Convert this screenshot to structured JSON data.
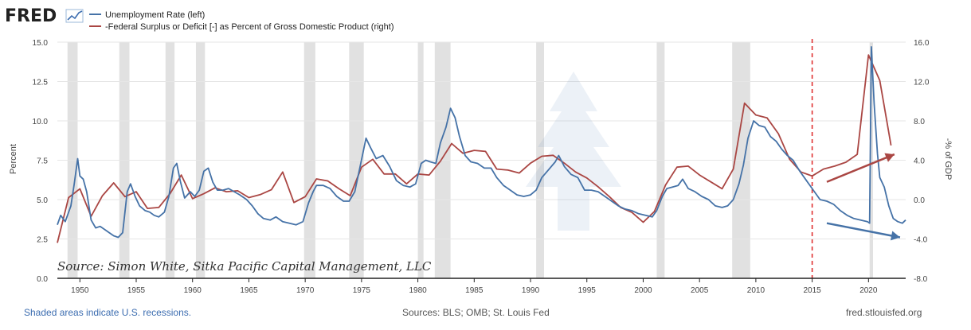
{
  "header": {
    "logo": "FRED"
  },
  "footer": {
    "left": "Shaded areas indicate U.S. recessions.",
    "middle": "Sources: BLS; OMB; St. Louis Fed",
    "right": "fred.stlouisfed.org"
  },
  "annotation": {
    "credit": "Source: Simon White, Sitka Pacific Capital Management, LLC",
    "reference_year": 2015
  },
  "colors": {
    "unemployment": "#4572a7",
    "deficit": "#aa4643",
    "recession": "#e1e1e1",
    "reference_line": "#e03030"
  },
  "chart_data": {
    "type": "line",
    "xlim": [
      1948,
      2023.3
    ],
    "x_ticks": [
      "1950",
      "1955",
      "1960",
      "1965",
      "1970",
      "1975",
      "1980",
      "1985",
      "1990",
      "1995",
      "2000",
      "2005",
      "2010",
      "2015",
      "2020"
    ],
    "left_axis": {
      "label": "Percent",
      "ylim": [
        0,
        15
      ],
      "ticks": [
        "0.0",
        "2.5",
        "5.0",
        "7.5",
        "10.0",
        "12.5",
        "15.0"
      ]
    },
    "right_axis": {
      "label": "-% of GDP",
      "ylim": [
        -8,
        16
      ],
      "ticks": [
        "-8.0",
        "-4.0",
        "0.0",
        "4.0",
        "8.0",
        "12.0",
        "16.0"
      ]
    },
    "recessions": [
      [
        1948.9,
        1949.8
      ],
      [
        1953.5,
        1954.4
      ],
      [
        1957.6,
        1958.4
      ],
      [
        1960.3,
        1961.1
      ],
      [
        1969.9,
        1970.9
      ],
      [
        1973.9,
        1975.2
      ],
      [
        1980.0,
        1980.5
      ],
      [
        1981.5,
        1982.9
      ],
      [
        1990.5,
        1991.2
      ],
      [
        2001.2,
        2001.9
      ],
      [
        2007.9,
        2009.5
      ],
      [
        2020.1,
        2020.4
      ]
    ],
    "series": [
      {
        "name": "Unemployment Rate (left)",
        "axis": "left",
        "points": [
          [
            1948.0,
            3.4
          ],
          [
            1948.3,
            4.0
          ],
          [
            1948.7,
            3.6
          ],
          [
            1949.2,
            4.6
          ],
          [
            1949.5,
            6.0
          ],
          [
            1949.8,
            7.6
          ],
          [
            1950.0,
            6.5
          ],
          [
            1950.3,
            6.3
          ],
          [
            1950.6,
            5.5
          ],
          [
            1951.0,
            3.7
          ],
          [
            1951.4,
            3.2
          ],
          [
            1951.8,
            3.3
          ],
          [
            1952.2,
            3.1
          ],
          [
            1952.6,
            2.9
          ],
          [
            1953.0,
            2.7
          ],
          [
            1953.4,
            2.6
          ],
          [
            1953.8,
            2.9
          ],
          [
            1954.2,
            5.5
          ],
          [
            1954.5,
            6.0
          ],
          [
            1954.9,
            5.2
          ],
          [
            1955.3,
            4.6
          ],
          [
            1955.8,
            4.3
          ],
          [
            1956.2,
            4.2
          ],
          [
            1956.6,
            4.0
          ],
          [
            1957.0,
            3.9
          ],
          [
            1957.5,
            4.2
          ],
          [
            1957.9,
            5.2
          ],
          [
            1958.3,
            7.0
          ],
          [
            1958.6,
            7.3
          ],
          [
            1958.9,
            6.2
          ],
          [
            1959.3,
            5.1
          ],
          [
            1959.8,
            5.5
          ],
          [
            1960.2,
            5.2
          ],
          [
            1960.6,
            5.6
          ],
          [
            1961.0,
            6.8
          ],
          [
            1961.4,
            7.0
          ],
          [
            1961.8,
            6.1
          ],
          [
            1962.2,
            5.6
          ],
          [
            1962.7,
            5.6
          ],
          [
            1963.2,
            5.7
          ],
          [
            1963.7,
            5.5
          ],
          [
            1964.2,
            5.3
          ],
          [
            1964.8,
            5.0
          ],
          [
            1965.3,
            4.6
          ],
          [
            1965.8,
            4.1
          ],
          [
            1966.3,
            3.8
          ],
          [
            1966.9,
            3.7
          ],
          [
            1967.4,
            3.9
          ],
          [
            1968.0,
            3.6
          ],
          [
            1968.6,
            3.5
          ],
          [
            1969.2,
            3.4
          ],
          [
            1969.8,
            3.6
          ],
          [
            1970.3,
            4.8
          ],
          [
            1970.7,
            5.5
          ],
          [
            1971.0,
            5.9
          ],
          [
            1971.6,
            5.9
          ],
          [
            1972.2,
            5.7
          ],
          [
            1972.8,
            5.2
          ],
          [
            1973.4,
            4.9
          ],
          [
            1973.9,
            4.9
          ],
          [
            1974.4,
            5.5
          ],
          [
            1974.9,
            7.2
          ],
          [
            1975.4,
            8.9
          ],
          [
            1975.8,
            8.3
          ],
          [
            1976.3,
            7.6
          ],
          [
            1976.9,
            7.8
          ],
          [
            1977.5,
            7.1
          ],
          [
            1978.1,
            6.2
          ],
          [
            1978.7,
            5.9
          ],
          [
            1979.3,
            5.8
          ],
          [
            1979.8,
            6.0
          ],
          [
            1980.3,
            7.3
          ],
          [
            1980.7,
            7.5
          ],
          [
            1981.1,
            7.4
          ],
          [
            1981.6,
            7.3
          ],
          [
            1982.0,
            8.6
          ],
          [
            1982.5,
            9.6
          ],
          [
            1982.9,
            10.8
          ],
          [
            1983.3,
            10.2
          ],
          [
            1983.7,
            9.0
          ],
          [
            1984.2,
            7.8
          ],
          [
            1984.7,
            7.4
          ],
          [
            1985.3,
            7.3
          ],
          [
            1985.9,
            7.0
          ],
          [
            1986.5,
            7.0
          ],
          [
            1987.0,
            6.4
          ],
          [
            1987.6,
            5.9
          ],
          [
            1988.2,
            5.6
          ],
          [
            1988.8,
            5.3
          ],
          [
            1989.4,
            5.2
          ],
          [
            1990.0,
            5.3
          ],
          [
            1990.5,
            5.6
          ],
          [
            1991.0,
            6.4
          ],
          [
            1991.6,
            6.9
          ],
          [
            1992.2,
            7.4
          ],
          [
            1992.5,
            7.8
          ],
          [
            1993.0,
            7.1
          ],
          [
            1993.6,
            6.6
          ],
          [
            1994.2,
            6.4
          ],
          [
            1994.8,
            5.6
          ],
          [
            1995.4,
            5.6
          ],
          [
            1996.0,
            5.5
          ],
          [
            1996.6,
            5.2
          ],
          [
            1997.2,
            4.9
          ],
          [
            1997.8,
            4.6
          ],
          [
            1998.4,
            4.4
          ],
          [
            1999.0,
            4.3
          ],
          [
            1999.6,
            4.1
          ],
          [
            2000.2,
            4.0
          ],
          [
            2000.8,
            3.9
          ],
          [
            2001.2,
            4.3
          ],
          [
            2001.7,
            5.2
          ],
          [
            2002.1,
            5.7
          ],
          [
            2002.6,
            5.8
          ],
          [
            2003.1,
            5.9
          ],
          [
            2003.5,
            6.3
          ],
          [
            2004.0,
            5.7
          ],
          [
            2004.6,
            5.5
          ],
          [
            2005.2,
            5.2
          ],
          [
            2005.8,
            5.0
          ],
          [
            2006.4,
            4.6
          ],
          [
            2007.0,
            4.5
          ],
          [
            2007.5,
            4.6
          ],
          [
            2008.0,
            5.0
          ],
          [
            2008.5,
            6.0
          ],
          [
            2008.9,
            7.2
          ],
          [
            2009.3,
            8.9
          ],
          [
            2009.8,
            10.0
          ],
          [
            2010.3,
            9.7
          ],
          [
            2010.8,
            9.6
          ],
          [
            2011.3,
            9.0
          ],
          [
            2011.8,
            8.7
          ],
          [
            2012.3,
            8.2
          ],
          [
            2012.8,
            7.8
          ],
          [
            2013.3,
            7.5
          ],
          [
            2013.9,
            6.8
          ],
          [
            2014.5,
            6.2
          ],
          [
            2015.1,
            5.6
          ],
          [
            2015.7,
            5.0
          ],
          [
            2016.3,
            4.9
          ],
          [
            2016.9,
            4.7
          ],
          [
            2017.5,
            4.3
          ],
          [
            2018.1,
            4.0
          ],
          [
            2018.7,
            3.8
          ],
          [
            2019.3,
            3.7
          ],
          [
            2019.9,
            3.6
          ],
          [
            2020.1,
            3.5
          ],
          [
            2020.25,
            14.7
          ],
          [
            2020.5,
            11.1
          ],
          [
            2020.8,
            7.9
          ],
          [
            2021.0,
            6.4
          ],
          [
            2021.4,
            5.8
          ],
          [
            2021.8,
            4.6
          ],
          [
            2022.2,
            3.8
          ],
          [
            2022.6,
            3.6
          ],
          [
            2023.0,
            3.5
          ],
          [
            2023.3,
            3.7
          ]
        ]
      },
      {
        "name": "-Federal Surplus or Deficit [-] as Percent of Gross Domestic Product (right)",
        "axis": "right",
        "points": [
          [
            1948.0,
            -4.4
          ],
          [
            1949.0,
            0.2
          ],
          [
            1950.0,
            1.1
          ],
          [
            1951.0,
            -1.7
          ],
          [
            1952.0,
            0.4
          ],
          [
            1953.0,
            1.7
          ],
          [
            1954.0,
            0.3
          ],
          [
            1955.0,
            0.8
          ],
          [
            1956.0,
            -0.9
          ],
          [
            1957.0,
            -0.8
          ],
          [
            1958.0,
            0.6
          ],
          [
            1959.0,
            2.5
          ],
          [
            1960.0,
            0.1
          ],
          [
            1961.0,
            0.6
          ],
          [
            1962.0,
            1.2
          ],
          [
            1963.0,
            0.8
          ],
          [
            1964.0,
            0.9
          ],
          [
            1965.0,
            0.2
          ],
          [
            1966.0,
            0.5
          ],
          [
            1967.0,
            1.0
          ],
          [
            1968.0,
            2.8
          ],
          [
            1969.0,
            -0.3
          ],
          [
            1970.0,
            0.3
          ],
          [
            1971.0,
            2.1
          ],
          [
            1972.0,
            1.9
          ],
          [
            1973.0,
            1.1
          ],
          [
            1974.0,
            0.4
          ],
          [
            1975.0,
            3.3
          ],
          [
            1976.0,
            4.1
          ],
          [
            1977.0,
            2.6
          ],
          [
            1978.0,
            2.6
          ],
          [
            1979.0,
            1.6
          ],
          [
            1980.0,
            2.6
          ],
          [
            1981.0,
            2.5
          ],
          [
            1982.0,
            3.9
          ],
          [
            1983.0,
            5.7
          ],
          [
            1984.0,
            4.7
          ],
          [
            1985.0,
            5.0
          ],
          [
            1986.0,
            4.9
          ],
          [
            1987.0,
            3.1
          ],
          [
            1988.0,
            3.0
          ],
          [
            1989.0,
            2.7
          ],
          [
            1990.0,
            3.7
          ],
          [
            1991.0,
            4.4
          ],
          [
            1992.0,
            4.5
          ],
          [
            1993.0,
            3.7
          ],
          [
            1994.0,
            2.8
          ],
          [
            1995.0,
            2.2
          ],
          [
            1996.0,
            1.3
          ],
          [
            1997.0,
            0.3
          ],
          [
            1998.0,
            -0.8
          ],
          [
            1999.0,
            -1.3
          ],
          [
            2000.0,
            -2.3
          ],
          [
            2001.0,
            -1.2
          ],
          [
            2002.0,
            1.5
          ],
          [
            2003.0,
            3.3
          ],
          [
            2004.0,
            3.4
          ],
          [
            2005.0,
            2.5
          ],
          [
            2006.0,
            1.8
          ],
          [
            2007.0,
            1.1
          ],
          [
            2008.0,
            3.1
          ],
          [
            2009.0,
            9.8
          ],
          [
            2010.0,
            8.6
          ],
          [
            2011.0,
            8.3
          ],
          [
            2012.0,
            6.7
          ],
          [
            2013.0,
            4.1
          ],
          [
            2014.0,
            2.8
          ],
          [
            2015.0,
            2.4
          ],
          [
            2016.0,
            3.1
          ],
          [
            2017.0,
            3.4
          ],
          [
            2018.0,
            3.8
          ],
          [
            2019.0,
            4.6
          ],
          [
            2020.0,
            14.7
          ],
          [
            2021.0,
            12.1
          ],
          [
            2022.0,
            5.5
          ]
        ]
      }
    ]
  }
}
